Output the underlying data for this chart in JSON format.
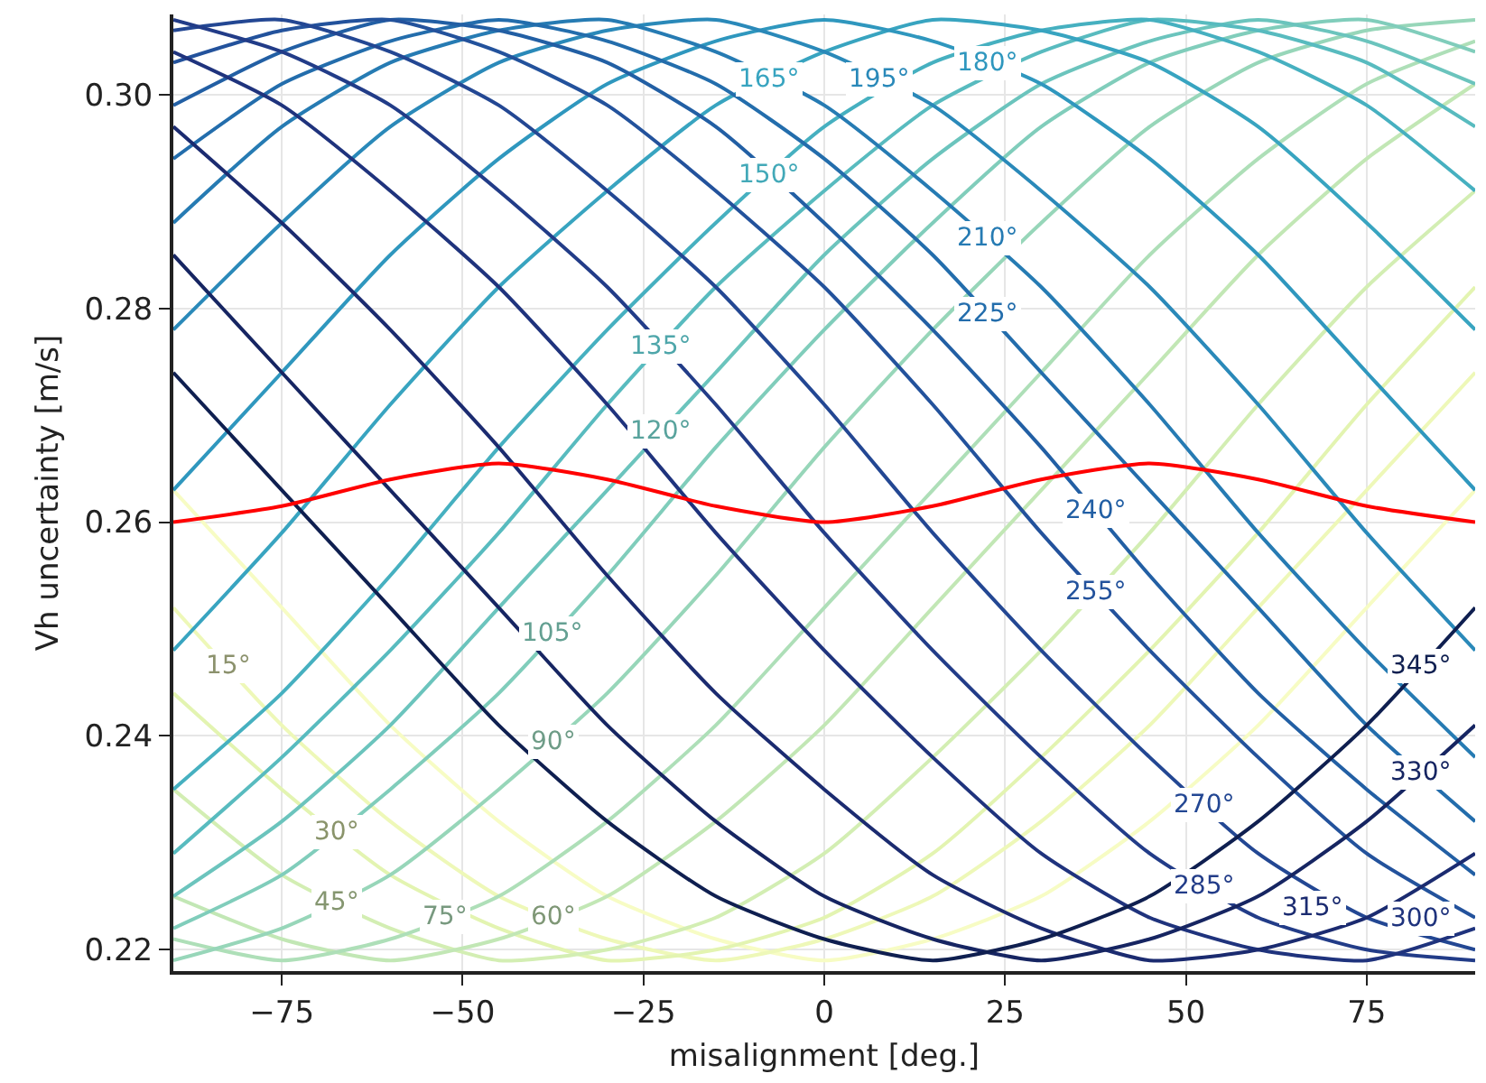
{
  "chart_data": {
    "type": "line",
    "xlabel": "misalignment [deg.]",
    "ylabel": "Vh uncertainty [m/s]",
    "x": [
      -90,
      -75,
      -60,
      -45,
      -30,
      -15,
      0,
      15,
      30,
      45,
      60,
      75,
      90
    ],
    "xlim": [
      -90,
      90
    ],
    "ylim": [
      0.218,
      0.3075
    ],
    "xticks": [
      {
        "value": -75,
        "label": "−75"
      },
      {
        "value": -50,
        "label": "−50"
      },
      {
        "value": -25,
        "label": "−25"
      },
      0,
      25,
      50,
      75
    ],
    "yticks": [
      {
        "value": 0.22,
        "label": "0.22"
      },
      {
        "value": 0.24,
        "label": "0.24"
      },
      {
        "value": 0.26,
        "label": "0.26"
      },
      {
        "value": 0.28,
        "label": "0.28"
      },
      {
        "value": 0.3,
        "label": "0.30"
      }
    ],
    "grid": true,
    "legend": false,
    "series": [
      {
        "color": "#f7fcc4",
        "values": [
          0.263,
          0.252,
          0.241,
          0.232,
          0.225,
          0.221,
          0.219,
          0.221,
          0.225,
          0.232,
          0.241,
          0.252,
          0.263
        ]
      },
      {
        "name": "15°",
        "color": "#eef8b8",
        "values": [
          0.252,
          0.241,
          0.232,
          0.225,
          0.221,
          0.219,
          0.221,
          0.225,
          0.232,
          0.241,
          0.252,
          0.263,
          0.274
        ]
      },
      {
        "name": "30°",
        "color": "#e3f4b1",
        "values": [
          0.244,
          0.235,
          0.227,
          0.222,
          0.219,
          0.22,
          0.223,
          0.229,
          0.238,
          0.248,
          0.259,
          0.271,
          0.282
        ]
      },
      {
        "name": "45°",
        "color": "#d3eeb3",
        "values": [
          0.235,
          0.227,
          0.222,
          0.219,
          0.22,
          0.223,
          0.229,
          0.238,
          0.248,
          0.259,
          0.271,
          0.282,
          0.291
        ]
      },
      {
        "name": "60°",
        "color": "#c2e7b5",
        "values": [
          0.225,
          0.221,
          0.219,
          0.221,
          0.225,
          0.232,
          0.241,
          0.252,
          0.263,
          0.274,
          0.285,
          0.294,
          0.301
        ]
      },
      {
        "name": "75°",
        "color": "#aedfb8",
        "values": [
          0.221,
          0.219,
          0.221,
          0.225,
          0.232,
          0.241,
          0.252,
          0.263,
          0.274,
          0.285,
          0.294,
          0.301,
          0.305
        ]
      },
      {
        "name": "90°",
        "color": "#97d6b9",
        "values": [
          0.219,
          0.222,
          0.227,
          0.235,
          0.244,
          0.255,
          0.267,
          0.278,
          0.288,
          0.297,
          0.303,
          0.306,
          0.307
        ]
      },
      {
        "name": "105°",
        "color": "#80cdbb",
        "values": [
          0.222,
          0.227,
          0.235,
          0.244,
          0.255,
          0.267,
          0.278,
          0.288,
          0.297,
          0.303,
          0.306,
          0.307,
          0.304
        ]
      },
      {
        "name": "120°",
        "color": "#6bc4bd",
        "values": [
          0.225,
          0.232,
          0.241,
          0.252,
          0.263,
          0.274,
          0.285,
          0.294,
          0.301,
          0.305,
          0.307,
          0.305,
          0.301
        ]
      },
      {
        "name": "135°",
        "color": "#58bbbf",
        "values": [
          0.229,
          0.238,
          0.248,
          0.259,
          0.271,
          0.282,
          0.291,
          0.299,
          0.304,
          0.307,
          0.306,
          0.303,
          0.297
        ]
      },
      {
        "name": "150°",
        "color": "#46b0c0",
        "values": [
          0.235,
          0.244,
          0.255,
          0.267,
          0.278,
          0.288,
          0.297,
          0.303,
          0.306,
          0.307,
          0.304,
          0.299,
          0.291
        ]
      },
      {
        "name": "165°",
        "color": "#38a4c0",
        "values": [
          0.248,
          0.259,
          0.271,
          0.282,
          0.291,
          0.299,
          0.304,
          0.307,
          0.306,
          0.303,
          0.297,
          0.288,
          0.278
        ]
      },
      {
        "name": "180°",
        "color": "#2f97be",
        "values": [
          0.263,
          0.274,
          0.285,
          0.294,
          0.301,
          0.305,
          0.307,
          0.305,
          0.301,
          0.294,
          0.285,
          0.274,
          0.263
        ]
      },
      {
        "name": "195°",
        "color": "#2a89b9",
        "values": [
          0.278,
          0.288,
          0.297,
          0.303,
          0.306,
          0.307,
          0.304,
          0.299,
          0.291,
          0.282,
          0.271,
          0.259,
          0.248
        ]
      },
      {
        "name": "210°",
        "color": "#267bb3",
        "values": [
          0.288,
          0.297,
          0.303,
          0.306,
          0.307,
          0.304,
          0.299,
          0.291,
          0.282,
          0.271,
          0.259,
          0.248,
          0.238
        ]
      },
      {
        "name": "225°",
        "color": "#236dac",
        "values": [
          0.294,
          0.301,
          0.305,
          0.307,
          0.305,
          0.301,
          0.294,
          0.285,
          0.274,
          0.263,
          0.252,
          0.241,
          0.232
        ]
      },
      {
        "name": "240°",
        "color": "#225fa4",
        "values": [
          0.299,
          0.304,
          0.307,
          0.306,
          0.303,
          0.297,
          0.288,
          0.278,
          0.267,
          0.255,
          0.244,
          0.235,
          0.227
        ]
      },
      {
        "name": "255°",
        "color": "#23529c",
        "values": [
          0.303,
          0.306,
          0.307,
          0.304,
          0.299,
          0.291,
          0.282,
          0.271,
          0.259,
          0.248,
          0.238,
          0.229,
          0.223
        ]
      },
      {
        "name": "270°",
        "color": "#234793",
        "values": [
          0.306,
          0.307,
          0.304,
          0.299,
          0.291,
          0.282,
          0.271,
          0.259,
          0.248,
          0.238,
          0.229,
          0.223,
          0.22
        ]
      },
      {
        "name": "285°",
        "color": "#223c88",
        "values": [
          0.307,
          0.304,
          0.299,
          0.291,
          0.282,
          0.271,
          0.259,
          0.248,
          0.238,
          0.229,
          0.223,
          0.22,
          0.219
        ]
      },
      {
        "name": "300°",
        "color": "#1f337d",
        "values": [
          0.304,
          0.299,
          0.291,
          0.282,
          0.271,
          0.259,
          0.248,
          0.238,
          0.229,
          0.223,
          0.22,
          0.219,
          0.222
        ]
      },
      {
        "name": "315°",
        "color": "#1b2b70",
        "values": [
          0.297,
          0.288,
          0.278,
          0.267,
          0.255,
          0.244,
          0.235,
          0.227,
          0.222,
          0.219,
          0.22,
          0.223,
          0.229
        ]
      },
      {
        "name": "330°",
        "color": "#162562",
        "values": [
          0.285,
          0.274,
          0.263,
          0.252,
          0.241,
          0.232,
          0.225,
          0.221,
          0.219,
          0.221,
          0.225,
          0.232,
          0.241
        ]
      },
      {
        "name": "345°",
        "color": "#0f1f50",
        "values": [
          0.274,
          0.263,
          0.252,
          0.241,
          0.232,
          0.225,
          0.221,
          0.219,
          0.221,
          0.225,
          0.232,
          0.241,
          0.252
        ]
      },
      {
        "color": "#ff0000",
        "values": [
          0.26,
          0.2615,
          0.264,
          0.2655,
          0.264,
          0.2615,
          0.26,
          0.2615,
          0.264,
          0.2655,
          0.264,
          0.2615,
          0.26
        ]
      }
    ]
  }
}
